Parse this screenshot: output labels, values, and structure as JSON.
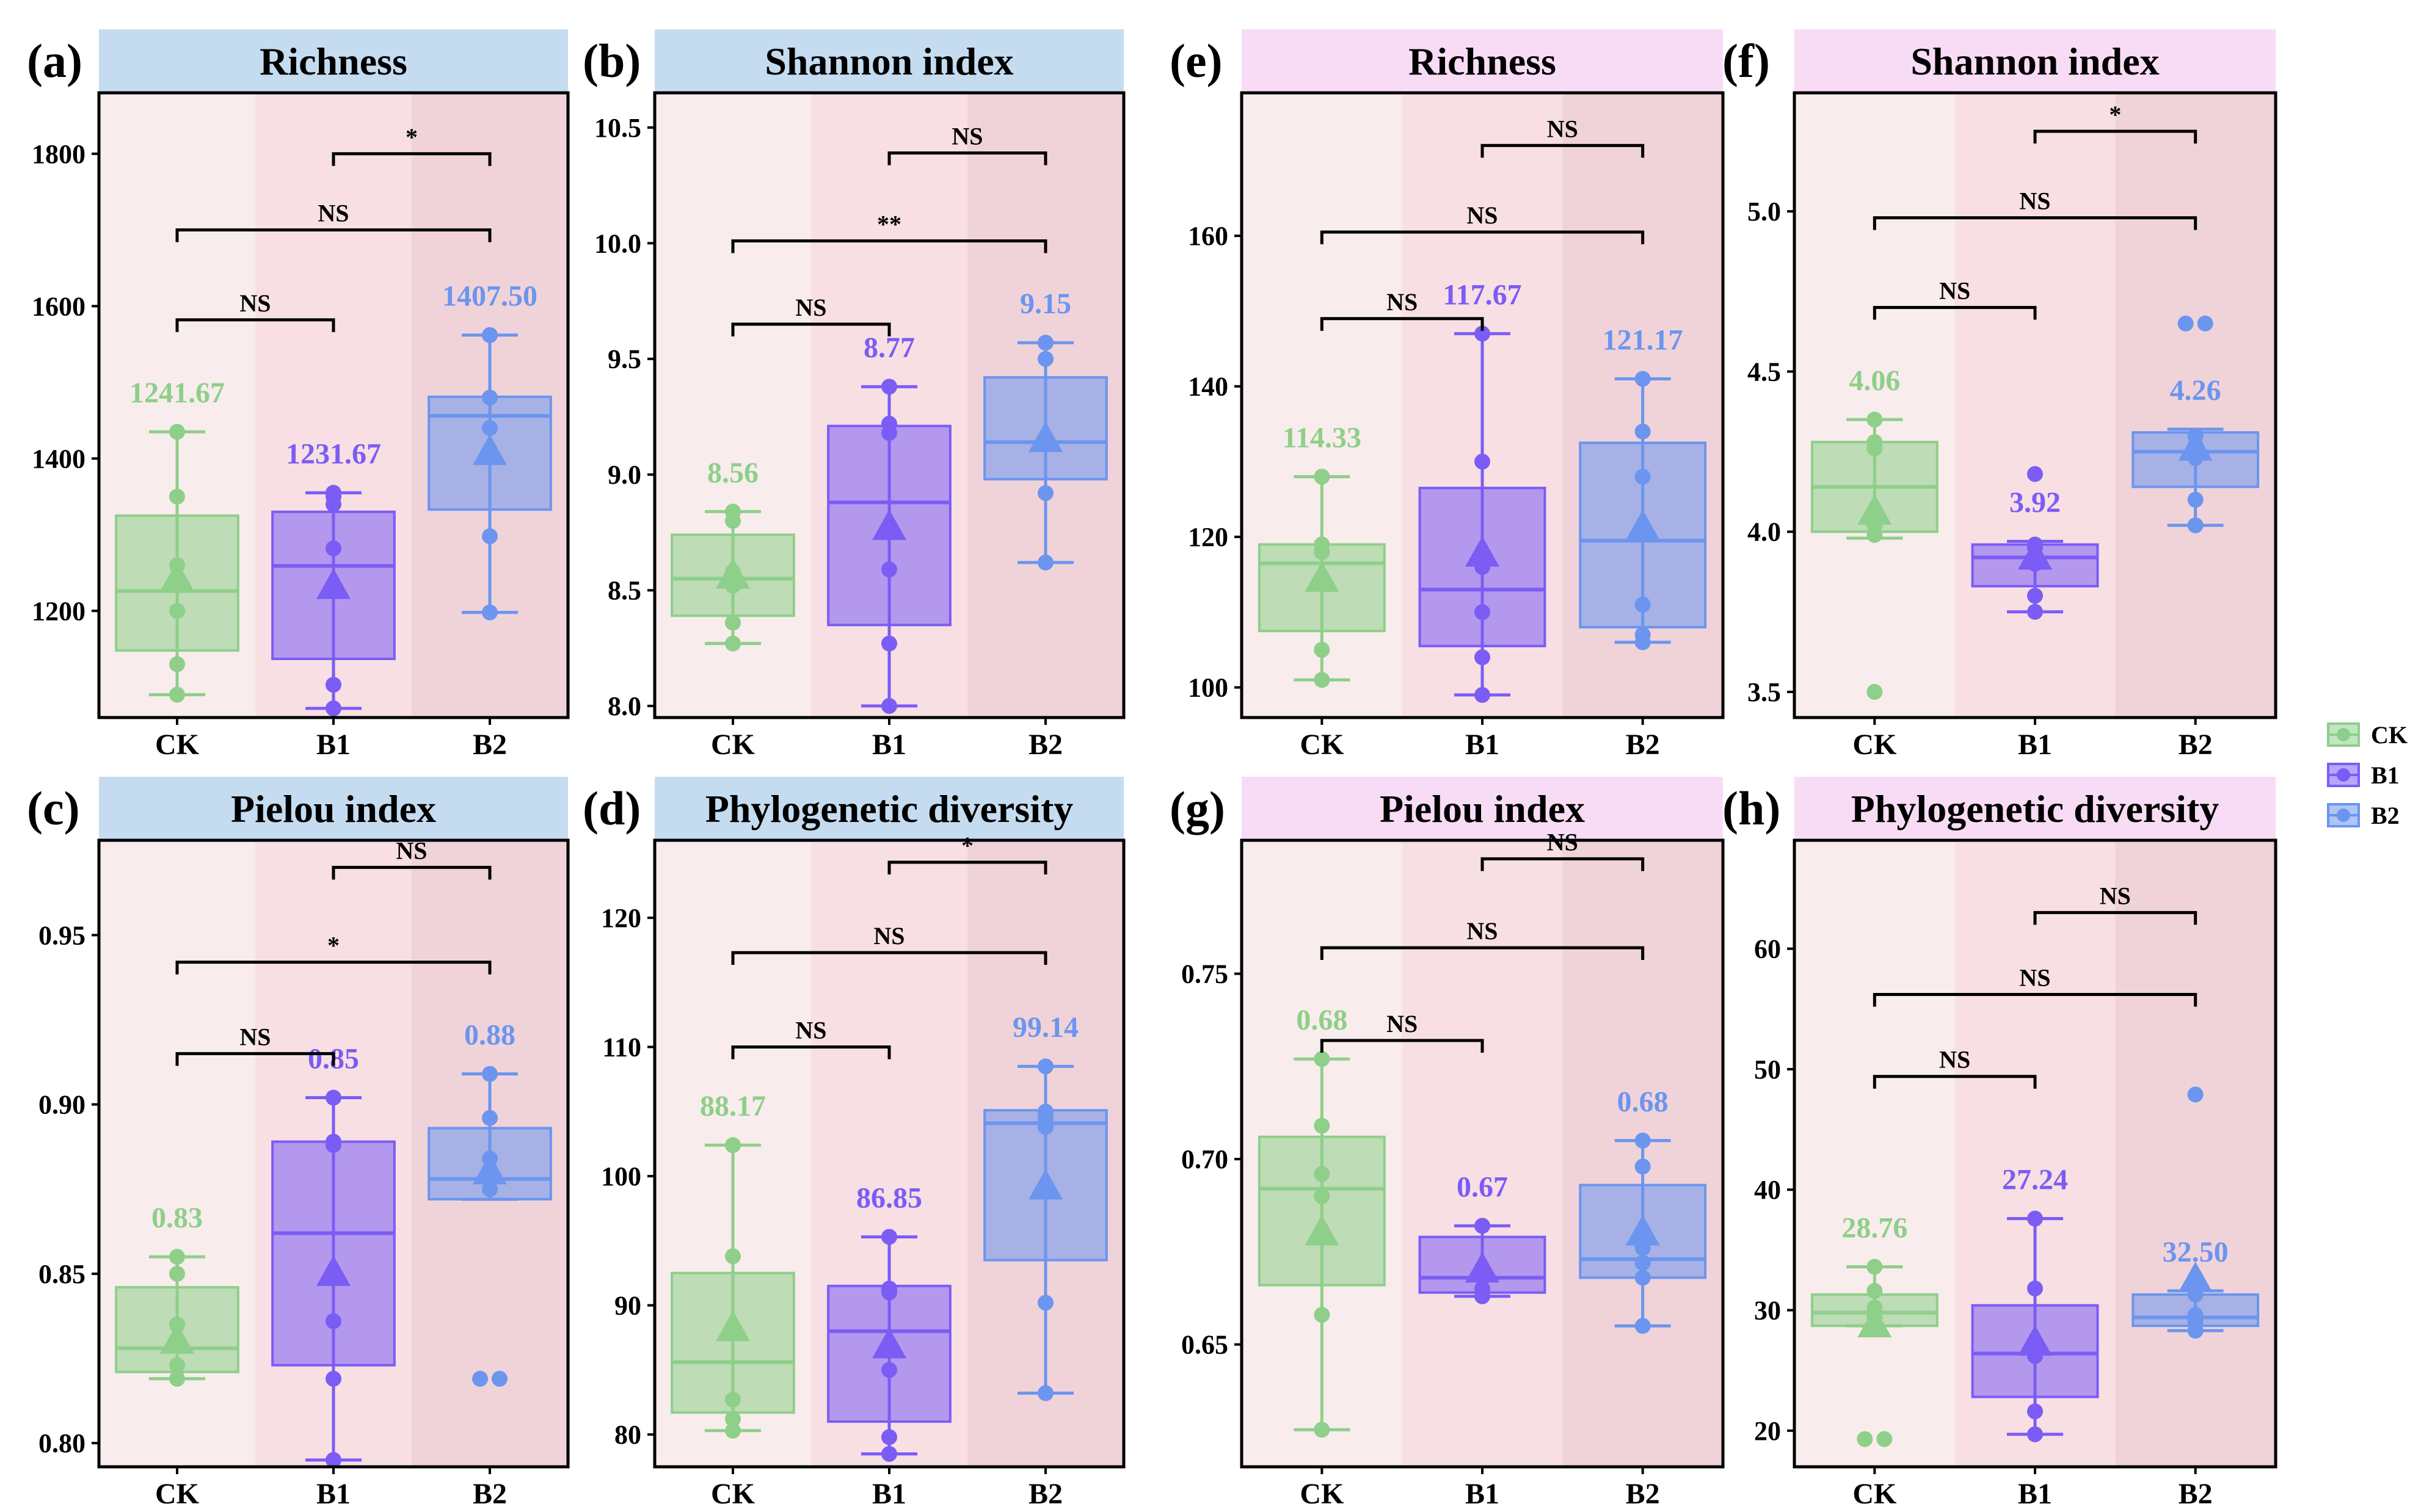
{
  "colors": {
    "CK": "#8ecf8a",
    "B1": "#7b5cf5",
    "B2": "#6b95ef",
    "header_blue": "#c5dcf0",
    "header_pink": "#f8dcf5",
    "bg_left": "#f9ecec",
    "bg_mid": "#f7dfe3",
    "bg_right": "#f0d3d9"
  },
  "legend": [
    {
      "label": "CK",
      "group": "CK"
    },
    {
      "label": "B1",
      "group": "B1"
    },
    {
      "label": "B2",
      "group": "B2"
    }
  ],
  "chart_data": [
    {
      "id": "a",
      "panel_label": "(a)",
      "title": "Richness",
      "header": "blue",
      "type": "box",
      "categories": [
        "CK",
        "B1",
        "B2"
      ],
      "ylim": [
        1060,
        1880
      ],
      "yticks": [
        1200,
        1400,
        1600,
        1800
      ],
      "ytick_labels": [
        "1200",
        "1400",
        "1600",
        "1800"
      ],
      "boxes": [
        {
          "group": "CK",
          "min": 1090,
          "q1": 1148,
          "median": 1226,
          "q3": 1325,
          "max": 1435,
          "mean": 1241.67,
          "mean_label": "1241.67",
          "points": [
            1090,
            1130,
            1200,
            1260,
            1350,
            1435
          ],
          "outliers": []
        },
        {
          "group": "B1",
          "min": 1072,
          "q1": 1137,
          "median": 1259,
          "q3": 1330,
          "max": 1355,
          "mean": 1231.67,
          "mean_label": "1231.67",
          "points": [
            1072,
            1103,
            1282,
            1340,
            1350,
            1355
          ],
          "outliers": []
        },
        {
          "group": "B2",
          "min": 1198,
          "q1": 1333,
          "median": 1456,
          "q3": 1481,
          "max": 1562,
          "mean": 1407.5,
          "mean_label": "1407.50",
          "points": [
            1198,
            1298,
            1440,
            1480,
            1562,
            1562
          ],
          "outliers": []
        }
      ],
      "comparisons": [
        {
          "from": 0,
          "to": 1,
          "label": "NS",
          "y": 1582
        },
        {
          "from": 0,
          "to": 2,
          "label": "NS",
          "y": 1700
        },
        {
          "from": 1,
          "to": 2,
          "label": "*",
          "y": 1800
        }
      ]
    },
    {
      "id": "b",
      "panel_label": "(b)",
      "title": "Shannon index",
      "header": "blue",
      "type": "box",
      "categories": [
        "CK",
        "B1",
        "B2"
      ],
      "ylim": [
        7.95,
        10.65
      ],
      "yticks": [
        8.0,
        8.5,
        9.0,
        9.5,
        10.0,
        10.5
      ],
      "ytick_labels": [
        "8.0",
        "8.5",
        "9.0",
        "9.5",
        "10.0",
        "10.5"
      ],
      "boxes": [
        {
          "group": "CK",
          "min": 8.27,
          "q1": 8.39,
          "median": 8.55,
          "q3": 8.74,
          "max": 8.84,
          "mean": 8.56,
          "mean_label": "8.56",
          "points": [
            8.27,
            8.36,
            8.52,
            8.58,
            8.8,
            8.84
          ],
          "outliers": []
        },
        {
          "group": "B1",
          "min": 8.0,
          "q1": 8.35,
          "median": 8.88,
          "q3": 9.21,
          "max": 9.38,
          "mean": 8.77,
          "mean_label": "8.77",
          "points": [
            8.0,
            8.27,
            8.59,
            9.18,
            9.22,
            9.38
          ],
          "outliers": []
        },
        {
          "group": "B2",
          "min": 8.62,
          "q1": 8.98,
          "median": 9.14,
          "q3": 9.42,
          "max": 9.57,
          "mean": 9.15,
          "mean_label": "9.15",
          "points": [
            8.62,
            8.92,
            9.15,
            9.5,
            9.57,
            9.57
          ],
          "outliers": []
        }
      ],
      "comparisons": [
        {
          "from": 0,
          "to": 1,
          "label": "NS",
          "y": 9.65
        },
        {
          "from": 0,
          "to": 2,
          "label": "**",
          "y": 10.01
        },
        {
          "from": 1,
          "to": 2,
          "label": "NS",
          "y": 10.39
        }
      ]
    },
    {
      "id": "e",
      "panel_label": "(e)",
      "title": "Richness",
      "header": "pink",
      "type": "box",
      "categories": [
        "CK",
        "B1",
        "B2"
      ],
      "ylim": [
        96,
        179
      ],
      "yticks": [
        100,
        120,
        140,
        160
      ],
      "ytick_labels": [
        "100",
        "120",
        "140",
        "160"
      ],
      "boxes": [
        {
          "group": "CK",
          "min": 101,
          "q1": 107.5,
          "median": 116.5,
          "q3": 119,
          "max": 128,
          "mean": 114.33,
          "mean_label": "114.33",
          "points": [
            101,
            105,
            114,
            118,
            119,
            128
          ],
          "outliers": []
        },
        {
          "group": "B1",
          "min": 99,
          "q1": 105.5,
          "median": 113,
          "q3": 126.5,
          "max": 147,
          "mean": 117.67,
          "mean_label": "117.67",
          "points": [
            99,
            104,
            110,
            116,
            130,
            147
          ],
          "outliers": []
        },
        {
          "group": "B2",
          "min": 106,
          "q1": 108,
          "median": 119.5,
          "q3": 132.5,
          "max": 141,
          "mean": 121.17,
          "mean_label": "121.17",
          "points": [
            106,
            107,
            111,
            128,
            134,
            141
          ],
          "outliers": []
        }
      ],
      "comparisons": [
        {
          "from": 0,
          "to": 1,
          "label": "NS",
          "y": 149
        },
        {
          "from": 0,
          "to": 2,
          "label": "NS",
          "y": 160.5
        },
        {
          "from": 1,
          "to": 2,
          "label": "NS",
          "y": 172
        }
      ]
    },
    {
      "id": "f",
      "panel_label": "(f)",
      "title": "Shannon index",
      "header": "pink",
      "type": "box",
      "categories": [
        "CK",
        "B1",
        "B2"
      ],
      "ylim": [
        3.42,
        5.37
      ],
      "yticks": [
        3.5,
        4.0,
        4.5,
        5.0
      ],
      "ytick_labels": [
        "3.5",
        "4.0",
        "4.5",
        "5.0"
      ],
      "boxes": [
        {
          "group": "CK",
          "min": 3.98,
          "q1": 4.0,
          "median": 4.14,
          "q3": 4.28,
          "max": 4.35,
          "mean": 4.06,
          "mean_label": "4.06",
          "points": [
            3.99,
            4.02,
            4.26,
            4.28,
            4.35
          ],
          "outliers": [
            3.5
          ]
        },
        {
          "group": "B1",
          "min": 3.75,
          "q1": 3.83,
          "median": 3.92,
          "q3": 3.96,
          "max": 3.97,
          "mean": 3.92,
          "mean_label": "3.92",
          "points": [
            3.75,
            3.8,
            3.9,
            3.95,
            3.96
          ],
          "outliers": [
            4.18
          ]
        },
        {
          "group": "B2",
          "min": 4.02,
          "q1": 4.14,
          "median": 4.25,
          "q3": 4.31,
          "max": 4.32,
          "mean": 4.26,
          "mean_label": "4.26",
          "points": [
            4.02,
            4.1,
            4.23,
            4.27,
            4.3
          ],
          "outliers": [
            4.65,
            4.65
          ]
        }
      ],
      "comparisons": [
        {
          "from": 0,
          "to": 1,
          "label": "NS",
          "y": 4.7
        },
        {
          "from": 0,
          "to": 2,
          "label": "NS",
          "y": 4.98
        },
        {
          "from": 1,
          "to": 2,
          "label": "*",
          "y": 5.25
        }
      ]
    },
    {
      "id": "c",
      "panel_label": "(c)",
      "title": "Pielou index",
      "header": "blue",
      "type": "box",
      "categories": [
        "CK",
        "B1",
        "B2"
      ],
      "ylim": [
        0.793,
        0.978
      ],
      "yticks": [
        0.8,
        0.85,
        0.9,
        0.95
      ],
      "ytick_labels": [
        "0.80",
        "0.85",
        "0.90",
        "0.95"
      ],
      "boxes": [
        {
          "group": "CK",
          "min": 0.819,
          "q1": 0.821,
          "median": 0.828,
          "q3": 0.846,
          "max": 0.855,
          "mean": 0.83,
          "mean_label": "0.83",
          "points": [
            0.819,
            0.823,
            0.835,
            0.85,
            0.855
          ],
          "outliers": []
        },
        {
          "group": "B1",
          "min": 0.795,
          "q1": 0.823,
          "median": 0.862,
          "q3": 0.889,
          "max": 0.902,
          "mean": 0.85,
          "mean_label": "0.85",
          "points": [
            0.795,
            0.819,
            0.836,
            0.888,
            0.889,
            0.902
          ],
          "outliers": []
        },
        {
          "group": "B2",
          "min": 0.872,
          "q1": 0.872,
          "median": 0.878,
          "q3": 0.893,
          "max": 0.909,
          "mean": 0.88,
          "mean_label": "0.88",
          "points": [
            0.875,
            0.879,
            0.884,
            0.896,
            0.909
          ],
          "outliers": [
            0.819,
            0.819
          ]
        }
      ],
      "comparisons": [
        {
          "from": 0,
          "to": 1,
          "label": "NS",
          "y": 0.915
        },
        {
          "from": 0,
          "to": 2,
          "label": "*",
          "y": 0.942
        },
        {
          "from": 1,
          "to": 2,
          "label": "NS",
          "y": 0.97
        }
      ]
    },
    {
      "id": "d",
      "panel_label": "(d)",
      "title": "Phylogenetic diversity",
      "header": "blue",
      "type": "box",
      "categories": [
        "CK",
        "B1",
        "B2"
      ],
      "ylim": [
        77.5,
        126
      ],
      "yticks": [
        80,
        90,
        100,
        110,
        120
      ],
      "ytick_labels": [
        "80",
        "90",
        "100",
        "110",
        "120"
      ],
      "boxes": [
        {
          "group": "CK",
          "min": 80.3,
          "q1": 81.7,
          "median": 85.6,
          "q3": 92.5,
          "max": 102.4,
          "mean": 88.17,
          "mean_label": "88.17",
          "points": [
            80.3,
            81.2,
            82.7,
            93.8,
            102.4
          ],
          "outliers": []
        },
        {
          "group": "B1",
          "min": 78.5,
          "q1": 81.0,
          "median": 88.0,
          "q3": 91.5,
          "max": 95.3,
          "mean": 86.85,
          "mean_label": "86.85",
          "points": [
            78.5,
            79.8,
            85.0,
            91.0,
            91.3,
            95.3
          ],
          "outliers": []
        },
        {
          "group": "B2",
          "min": 83.2,
          "q1": 93.5,
          "median": 104.1,
          "q3": 105.1,
          "max": 108.5,
          "mean": 99.14,
          "mean_label": "99.14",
          "points": [
            83.2,
            90.2,
            103.8,
            104.5,
            105.0,
            108.5
          ],
          "outliers": []
        }
      ],
      "comparisons": [
        {
          "from": 0,
          "to": 1,
          "label": "NS",
          "y": 110
        },
        {
          "from": 0,
          "to": 2,
          "label": "NS",
          "y": 117.3
        },
        {
          "from": 1,
          "to": 2,
          "label": "*",
          "y": 124.3
        }
      ]
    },
    {
      "id": "g",
      "panel_label": "(g)",
      "title": "Pielou index",
      "header": "pink",
      "type": "box",
      "categories": [
        "CK",
        "B1",
        "B2"
      ],
      "ylim": [
        0.617,
        0.786
      ],
      "yticks": [
        0.65,
        0.7,
        0.75
      ],
      "ytick_labels": [
        "0.65",
        "0.70",
        "0.75"
      ],
      "boxes": [
        {
          "group": "CK",
          "min": 0.627,
          "q1": 0.666,
          "median": 0.692,
          "q3": 0.706,
          "max": 0.727,
          "mean": 0.68,
          "mean_label": "0.68",
          "points": [
            0.627,
            0.658,
            0.69,
            0.696,
            0.709,
            0.727
          ],
          "outliers": []
        },
        {
          "group": "B1",
          "min": 0.663,
          "q1": 0.664,
          "median": 0.668,
          "q3": 0.679,
          "max": 0.682,
          "mean": 0.67,
          "mean_label": "0.67",
          "points": [
            0.663,
            0.665,
            0.668,
            0.682,
            0.682
          ],
          "outliers": []
        },
        {
          "group": "B2",
          "min": 0.655,
          "q1": 0.668,
          "median": 0.673,
          "q3": 0.693,
          "max": 0.705,
          "mean": 0.68,
          "mean_label": "0.68",
          "points": [
            0.655,
            0.668,
            0.672,
            0.676,
            0.698,
            0.705
          ],
          "outliers": []
        }
      ],
      "comparisons": [
        {
          "from": 0,
          "to": 1,
          "label": "NS",
          "y": 0.732
        },
        {
          "from": 0,
          "to": 2,
          "label": "NS",
          "y": 0.757
        },
        {
          "from": 1,
          "to": 2,
          "label": "NS",
          "y": 0.781
        }
      ]
    },
    {
      "id": "h",
      "panel_label": "(h)",
      "title": "Phylogenetic diversity",
      "header": "pink",
      "type": "box",
      "categories": [
        "CK",
        "B1",
        "B2"
      ],
      "ylim": [
        17,
        69
      ],
      "yticks": [
        20,
        30,
        40,
        50,
        60
      ],
      "ytick_labels": [
        "20",
        "30",
        "40",
        "50",
        "60"
      ],
      "boxes": [
        {
          "group": "CK",
          "min": 28.7,
          "q1": 28.7,
          "median": 29.8,
          "q3": 31.3,
          "max": 33.6,
          "mean": 28.76,
          "mean_label": "28.76",
          "points": [
            28.9,
            29.4,
            30.2,
            31.6,
            33.6
          ],
          "outliers": [
            19.3,
            19.3
          ]
        },
        {
          "group": "B1",
          "min": 19.7,
          "q1": 22.8,
          "median": 26.4,
          "q3": 30.4,
          "max": 37.6,
          "mean": 27.24,
          "mean_label": "27.24",
          "points": [
            19.7,
            21.6,
            26.2,
            31.8,
            37.6
          ],
          "outliers": []
        },
        {
          "group": "B2",
          "min": 28.3,
          "q1": 28.7,
          "median": 29.4,
          "q3": 31.3,
          "max": 31.6,
          "mean": 32.5,
          "mean_label": "32.50",
          "points": [
            28.3,
            29.0,
            29.6,
            31.3,
            31.6
          ],
          "outliers": [
            47.9
          ]
        }
      ],
      "comparisons": [
        {
          "from": 0,
          "to": 1,
          "label": "NS",
          "y": 49.4
        },
        {
          "from": 0,
          "to": 2,
          "label": "NS",
          "y": 56.2
        },
        {
          "from": 1,
          "to": 2,
          "label": "NS",
          "y": 63.0
        }
      ]
    }
  ]
}
